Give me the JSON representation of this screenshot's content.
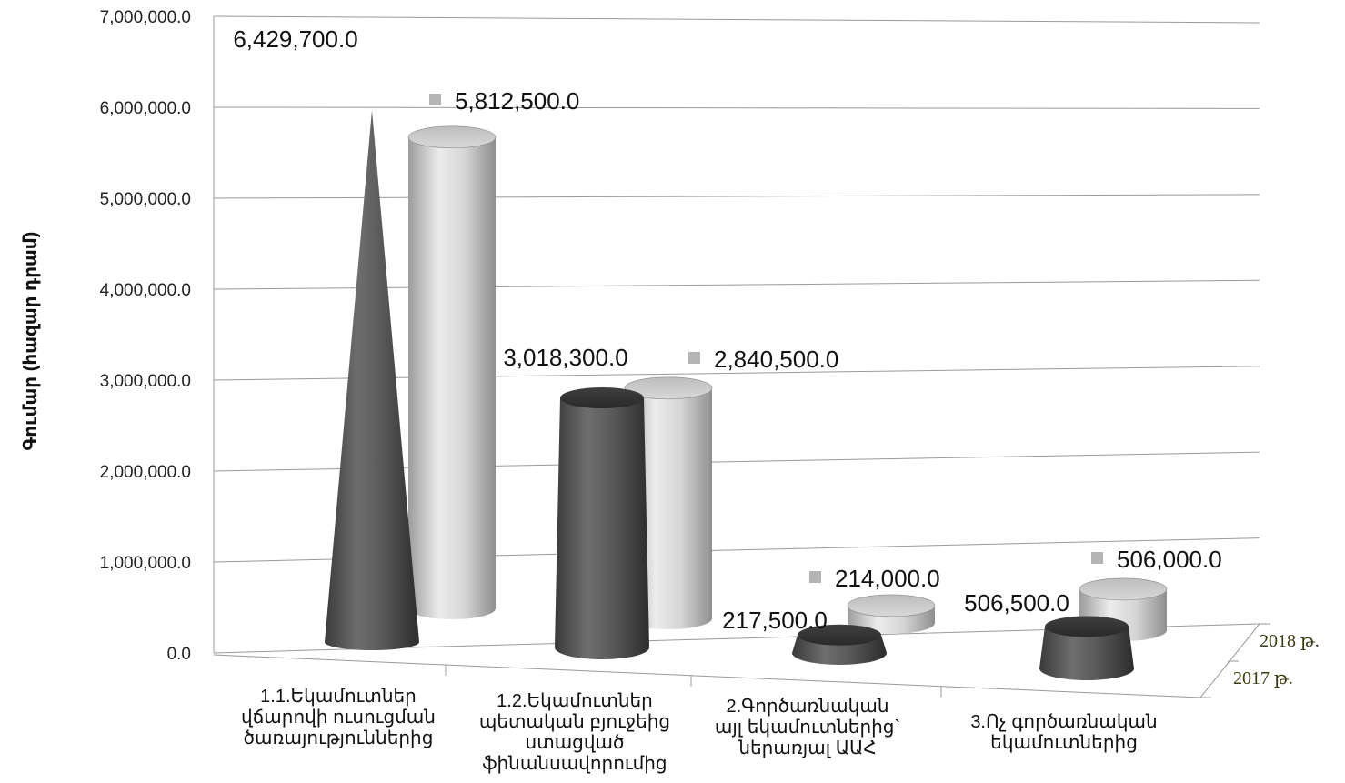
{
  "chart_data": {
    "type": "bar",
    "ylabel": "Գումար (հազար դրամ)",
    "ylim": [
      0,
      7000000
    ],
    "y_ticks": [
      "0.0",
      "1,000,000.0",
      "2,000,000.0",
      "3,000,000.0",
      "4,000,000.0",
      "5,000,000.0",
      "6,000,000.0",
      "7,000,000.0"
    ],
    "grid": true,
    "categories": [
      [
        "1.1.Եկամուտներ",
        "վճարովի ուսուցման",
        "ծառայություններից"
      ],
      [
        "1.2.Եկամուտներ",
        "պետական բյուջեից",
        "ստացված",
        "ֆինանսավորումից"
      ],
      [
        "2.Գործառնական",
        "այլ եկամուտներից`",
        "ներառյալ ԱԱՀ"
      ],
      [
        "3.Ոչ գործառնական",
        "եկամուտներից"
      ]
    ],
    "series": [
      {
        "name": "2017 թ.",
        "values": [
          6429700,
          3018300,
          217500,
          506500
        ],
        "labels": [
          "6,429,700.0",
          "3,018,300.0",
          "217,500.0",
          "506,500.0"
        ],
        "color": "#555555"
      },
      {
        "name": "2018 թ.",
        "values": [
          5812500,
          2840500,
          214000,
          506000
        ],
        "labels": [
          "5,812,500.0",
          "2,840,500.0",
          "214,000.0",
          "506,000.0"
        ],
        "color": "#c4c4c4"
      }
    ]
  }
}
